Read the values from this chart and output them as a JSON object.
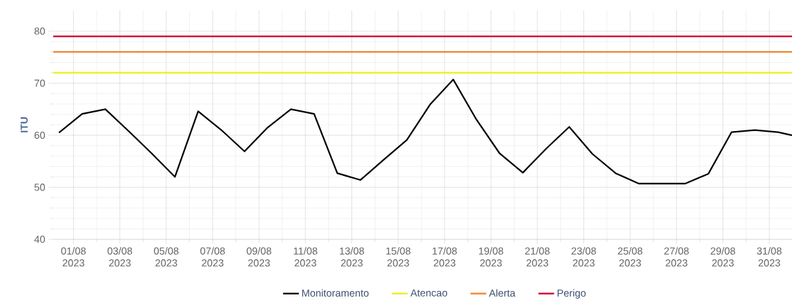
{
  "chart_data": {
    "type": "line",
    "ylabel": "ITU",
    "x": [
      "2023-07-31T09:00",
      "2023-08-01T09:00",
      "2023-08-02T09:00",
      "2023-08-03T09:00",
      "2023-08-04T09:00",
      "2023-08-05T09:00",
      "2023-08-06T09:00",
      "2023-08-07T09:00",
      "2023-08-08T09:00",
      "2023-08-09T09:00",
      "2023-08-10T09:00",
      "2023-08-11T09:00",
      "2023-08-12T09:00",
      "2023-08-13T09:00",
      "2023-08-14T09:00",
      "2023-08-15T09:00",
      "2023-08-16T09:00",
      "2023-08-17T09:00",
      "2023-08-18T09:00",
      "2023-08-19T09:00",
      "2023-08-20T09:00",
      "2023-08-21T09:00",
      "2023-08-22T09:00",
      "2023-08-23T09:00",
      "2023-08-24T09:00",
      "2023-08-25T09:00",
      "2023-08-26T09:00",
      "2023-08-27T09:00",
      "2023-08-28T09:00",
      "2023-08-29T09:00",
      "2023-08-30T09:00",
      "2023-08-31T09:00",
      "2023-08-31T23:30"
    ],
    "series": [
      {
        "name": "Monitoramento",
        "color": "#000000",
        "values": [
          60.5,
          64.1,
          65.0,
          60.8,
          56.5,
          52.0,
          64.6,
          61.0,
          56.9,
          61.5,
          65.0,
          64.1,
          52.7,
          51.4,
          55.3,
          59.1,
          65.9,
          70.7,
          63.0,
          56.5,
          52.8,
          57.4,
          61.6,
          56.4,
          52.7,
          50.7,
          50.7,
          50.7,
          52.6,
          60.6,
          61.0,
          60.6,
          60.0
        ]
      }
    ],
    "ref_lines": [
      {
        "axis": "y",
        "value": 72,
        "label": "Atencao",
        "color": "#eef02a"
      },
      {
        "axis": "y",
        "value": 76,
        "label": "Alerta",
        "color": "#f08c3c"
      },
      {
        "axis": "y",
        "value": 79,
        "label": "Perigo",
        "color": "#d4143c"
      }
    ],
    "xlim": [
      "2023-07-31T03:00",
      "2023-08-31T23:30"
    ],
    "ylim": [
      40,
      84
    ],
    "xticks": [
      {
        "value": "2023-08-01",
        "label": "01/08 2023"
      },
      {
        "value": "2023-08-03",
        "label": "03/08 2023"
      },
      {
        "value": "2023-08-05",
        "label": "05/08 2023"
      },
      {
        "value": "2023-08-07",
        "label": "07/08 2023"
      },
      {
        "value": "2023-08-09",
        "label": "09/08 2023"
      },
      {
        "value": "2023-08-11",
        "label": "11/08 2023"
      },
      {
        "value": "2023-08-13",
        "label": "13/08 2023"
      },
      {
        "value": "2023-08-15",
        "label": "15/08 2023"
      },
      {
        "value": "2023-08-17",
        "label": "17/08 2023"
      },
      {
        "value": "2023-08-19",
        "label": "19/08 2023"
      },
      {
        "value": "2023-08-21",
        "label": "21/08 2023"
      },
      {
        "value": "2023-08-23",
        "label": "23/08 2023"
      },
      {
        "value": "2023-08-25",
        "label": "25/08 2023"
      },
      {
        "value": "2023-08-27",
        "label": "27/08 2023"
      },
      {
        "value": "2023-08-29",
        "label": "29/08 2023"
      },
      {
        "value": "2023-08-31",
        "label": "31/08 2023"
      }
    ],
    "yticks": [
      40,
      50,
      60,
      70,
      80
    ],
    "grid": true,
    "legend": "bottom",
    "marker": "none"
  }
}
